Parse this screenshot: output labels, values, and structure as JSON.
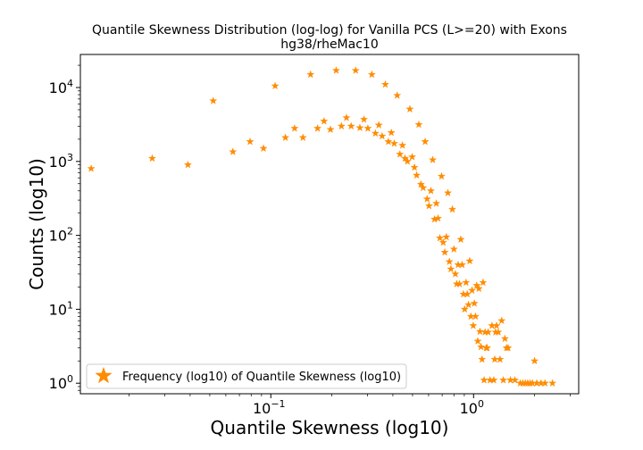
{
  "chart_data": {
    "type": "scatter",
    "title": "Quantile Skewness Distribution (log-log) for Vanilla PCS (L>=20) with Exons",
    "subtitle": "hg38/rheMac10",
    "xlabel": "Quantile Skewness (log10)",
    "ylabel": "Counts (log10)",
    "x_scale": "log",
    "y_scale": "log",
    "xlim": [
      0.0115,
      3.3
    ],
    "ylim": [
      0.72,
      28000
    ],
    "x_ticks": [
      {
        "base": "10",
        "exp": "−1",
        "value": 0.1
      },
      {
        "base": "10",
        "exp": "0",
        "value": 1
      }
    ],
    "y_ticks": [
      {
        "base": "10",
        "exp": "0",
        "value": 1
      },
      {
        "base": "10",
        "exp": "1",
        "value": 10
      },
      {
        "base": "10",
        "exp": "2",
        "value": 100
      },
      {
        "base": "10",
        "exp": "3",
        "value": 1000
      },
      {
        "base": "10",
        "exp": "4",
        "value": 10000
      }
    ],
    "legend": {
      "position": "lower-left",
      "entries": [
        "Frequency (log10) of Quantile Skewness (log10)"
      ]
    },
    "marker": "star",
    "color": "#ff8c00",
    "grid": false,
    "series": [
      {
        "name": "Frequency (log10) of Quantile Skewness (log10)",
        "points": [
          [
            0.013,
            800
          ],
          [
            0.026,
            1100
          ],
          [
            0.039,
            900
          ],
          [
            0.052,
            6600
          ],
          [
            0.065,
            1350
          ],
          [
            0.079,
            1850
          ],
          [
            0.092,
            1500
          ],
          [
            0.105,
            10500
          ],
          [
            0.118,
            2100
          ],
          [
            0.131,
            2800
          ],
          [
            0.144,
            2100
          ],
          [
            0.157,
            15000
          ],
          [
            0.17,
            2800
          ],
          [
            0.183,
            3500
          ],
          [
            0.197,
            2700
          ],
          [
            0.21,
            17000
          ],
          [
            0.223,
            3000
          ],
          [
            0.236,
            3900
          ],
          [
            0.249,
            3000
          ],
          [
            0.262,
            17000
          ],
          [
            0.275,
            2850
          ],
          [
            0.288,
            3700
          ],
          [
            0.301,
            2800
          ],
          [
            0.315,
            15000
          ],
          [
            0.328,
            2400
          ],
          [
            0.341,
            3100
          ],
          [
            0.354,
            2200
          ],
          [
            0.367,
            11000
          ],
          [
            0.38,
            1850
          ],
          [
            0.393,
            2450
          ],
          [
            0.406,
            1750
          ],
          [
            0.42,
            7800
          ],
          [
            0.433,
            1250
          ],
          [
            0.446,
            1650
          ],
          [
            0.459,
            1100
          ],
          [
            0.472,
            1000
          ],
          [
            0.485,
            5100
          ],
          [
            0.498,
            1150
          ],
          [
            0.511,
            830
          ],
          [
            0.524,
            650
          ],
          [
            0.537,
            3150
          ],
          [
            0.55,
            490
          ],
          [
            0.564,
            440
          ],
          [
            0.577,
            1850
          ],
          [
            0.59,
            310
          ],
          [
            0.603,
            250
          ],
          [
            0.616,
            400
          ],
          [
            0.629,
            1050
          ],
          [
            0.642,
            165
          ],
          [
            0.655,
            270
          ],
          [
            0.668,
            170
          ],
          [
            0.682,
            92
          ],
          [
            0.695,
            630
          ],
          [
            0.708,
            80
          ],
          [
            0.721,
            59
          ],
          [
            0.734,
            95
          ],
          [
            0.747,
            375
          ],
          [
            0.76,
            44
          ],
          [
            0.773,
            35
          ],
          [
            0.786,
            225
          ],
          [
            0.8,
            65
          ],
          [
            0.813,
            30
          ],
          [
            0.826,
            22
          ],
          [
            0.839,
            40
          ],
          [
            0.852,
            22
          ],
          [
            0.865,
            88
          ],
          [
            0.878,
            40
          ],
          [
            0.891,
            16
          ],
          [
            0.904,
            10
          ],
          [
            0.918,
            23
          ],
          [
            0.931,
            16
          ],
          [
            0.944,
            11.5
          ],
          [
            0.957,
            45
          ],
          [
            0.97,
            8
          ],
          [
            0.983,
            18
          ],
          [
            0.996,
            6
          ],
          [
            1.009,
            12
          ],
          [
            1.022,
            8
          ],
          [
            1.036,
            21
          ],
          [
            1.049,
            3.7
          ],
          [
            1.062,
            19
          ],
          [
            1.075,
            5
          ],
          [
            1.088,
            3.1
          ],
          [
            1.101,
            2.1
          ],
          [
            1.114,
            23
          ],
          [
            1.127,
            1.1
          ],
          [
            1.14,
            4.9
          ],
          [
            1.154,
            3
          ],
          [
            1.167,
            3
          ],
          [
            1.18,
            4.9
          ],
          [
            1.206,
            1.1
          ],
          [
            1.232,
            6
          ],
          [
            1.258,
            1.1
          ],
          [
            1.272,
            2.1
          ],
          [
            1.285,
            4.9
          ],
          [
            1.298,
            6
          ],
          [
            1.324,
            4.9
          ],
          [
            1.35,
            2.1
          ],
          [
            1.376,
            7
          ],
          [
            1.402,
            1.1
          ],
          [
            1.428,
            4
          ],
          [
            1.454,
            3
          ],
          [
            1.48,
            3
          ],
          [
            1.52,
            1.1
          ],
          [
            1.6,
            1.1
          ],
          [
            1.7,
            1.0
          ],
          [
            1.75,
            1.0
          ],
          [
            1.8,
            1.0
          ],
          [
            1.85,
            1.0
          ],
          [
            1.9,
            1.0
          ],
          [
            1.95,
            1.0
          ],
          [
            2.0,
            2.0
          ],
          [
            2.05,
            1.0
          ],
          [
            2.15,
            1.0
          ],
          [
            2.25,
            1.0
          ],
          [
            2.45,
            1.0
          ]
        ]
      }
    ]
  }
}
